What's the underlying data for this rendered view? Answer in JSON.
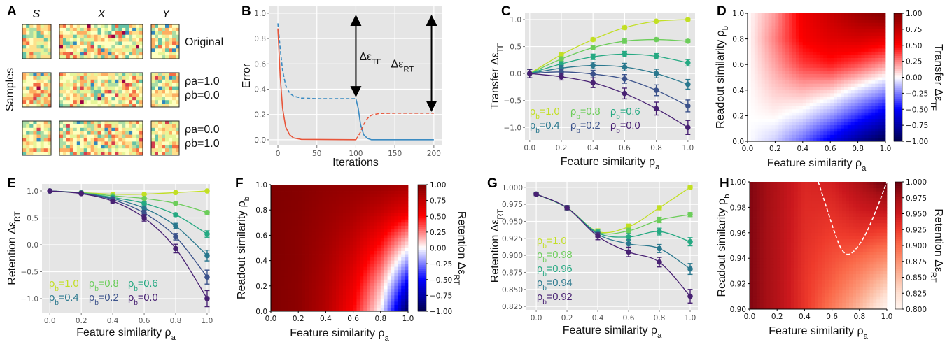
{
  "panel_labels": [
    "A",
    "B",
    "C",
    "D",
    "E",
    "F",
    "G",
    "H"
  ],
  "panel_a": {
    "column_labels": [
      "S",
      "X",
      "Y"
    ],
    "side_label": "Samples",
    "row_labels": [
      [
        "Original"
      ],
      [
        "ρa=1.0",
        "ρb=0.0"
      ],
      [
        "ρa=0.0",
        "ρb=1.0"
      ]
    ],
    "palette": [
      "#ffffbf",
      "#fee08b",
      "#e6f598",
      "#abdda4",
      "#fdae61",
      "#f46d43",
      "#66c2a5",
      "#3288bd",
      "#d53e4f",
      "#9e0142"
    ]
  },
  "chart_data": [
    {
      "id": "B",
      "type": "line",
      "xlabel": {
        "text": "Iterations"
      },
      "ylabel": {
        "text": "Error"
      },
      "xlim": [
        -10.8,
        210
      ],
      "ylim": [
        -0.045,
        1.055
      ],
      "grid": true,
      "background": "#e5e5e5",
      "xticks": [
        0,
        50,
        100,
        150,
        200
      ],
      "xtick_labels": [
        "0",
        "50",
        "100",
        "150",
        "200"
      ],
      "yticks": [
        0,
        0.2,
        0.4,
        0.6,
        0.8,
        1.0
      ],
      "ytick_labels": [
        "0.0",
        "0.2",
        "0.4",
        "0.6",
        "0.8",
        "1.0"
      ],
      "series": [
        {
          "color": "#3b8bc2",
          "dash": true,
          "x": [
            0,
            3,
            6,
            10,
            15,
            20,
            30,
            50,
            100
          ],
          "y": [
            0.92,
            0.72,
            0.55,
            0.43,
            0.37,
            0.345,
            0.33,
            0.325,
            0.325
          ]
        },
        {
          "color": "#3b8bc2",
          "dash": false,
          "x": [
            100,
            103,
            106,
            110,
            115,
            120,
            200
          ],
          "y": [
            0.325,
            0.25,
            0.12,
            0.04,
            0.01,
            0,
            0
          ]
        },
        {
          "color": "#e8553a",
          "dash": false,
          "x": [
            0,
            3,
            6,
            10,
            15,
            20,
            30,
            100
          ],
          "y": [
            0.88,
            0.5,
            0.25,
            0.1,
            0.04,
            0.015,
            0.003,
            0
          ]
        },
        {
          "color": "#e8553a",
          "dash": true,
          "x": [
            100,
            105,
            110,
            115,
            120,
            130,
            150,
            200
          ],
          "y": [
            0,
            0.05,
            0.12,
            0.17,
            0.195,
            0.208,
            0.21,
            0.21
          ]
        }
      ],
      "annotations": [
        {
          "text": "Δε",
          "sub": "TF",
          "x": 100,
          "y_from": 1.0,
          "y_to": 0.325
        },
        {
          "text": "Δε",
          "sub": "RT",
          "x": 197,
          "y_from": 1.0,
          "y_to": 0.21
        }
      ]
    },
    {
      "id": "C",
      "type": "line",
      "xlabel": {
        "text": "Feature similarity ρ",
        "sub": "a"
      },
      "ylabel": {
        "text": "Transfer Δε",
        "sub": "TF"
      },
      "xlim": [
        -0.03,
        1.045
      ],
      "ylim": [
        -1.23,
        1.13
      ],
      "grid": true,
      "background": "#e5e5e5",
      "xticks": [
        0,
        0.2,
        0.4,
        0.6,
        0.8,
        1.0
      ],
      "xtick_labels": [
        "0.0",
        "0.2",
        "0.4",
        "0.6",
        "0.8",
        "1.0"
      ],
      "yticks": [
        -1,
        -0.5,
        0,
        0.5,
        1
      ],
      "ytick_labels": [
        "−1.0",
        "−0.5",
        "0.0",
        "0.5",
        "1.0"
      ],
      "legend": "bottom-left",
      "x": [
        0,
        0.2,
        0.4,
        0.6,
        0.8,
        1.0
      ],
      "series": [
        {
          "name": "ρb=1.0",
          "color": "#c2df23",
          "values": [
            0,
            0.35,
            0.63,
            0.85,
            0.97,
            1.0
          ],
          "err": [
            0.08,
            0.04,
            0.03,
            0.03,
            0.02,
            0.02
          ]
        },
        {
          "name": "ρb=0.8",
          "color": "#6ccd5a",
          "values": [
            0,
            0.27,
            0.48,
            0.6,
            0.63,
            0.6
          ],
          "err": [
            0.08,
            0.04,
            0.04,
            0.04,
            0.03,
            0.03
          ]
        },
        {
          "name": "ρb=0.6",
          "color": "#25a982",
          "values": [
            0,
            0.18,
            0.31,
            0.36,
            0.32,
            0.2
          ],
          "err": [
            0.08,
            0.04,
            0.05,
            0.05,
            0.05,
            0.06
          ]
        },
        {
          "name": "ρb=0.4",
          "color": "#2a788e",
          "values": [
            0,
            0.1,
            0.15,
            0.12,
            0.0,
            -0.2
          ],
          "err": [
            0.08,
            0.05,
            0.06,
            0.07,
            0.08,
            0.09
          ]
        },
        {
          "name": "ρb=0.2",
          "color": "#3b528b",
          "values": [
            0,
            0.03,
            -0.01,
            -0.1,
            -0.31,
            -0.6
          ],
          "err": [
            0.08,
            0.05,
            0.07,
            0.08,
            0.1,
            0.11
          ]
        },
        {
          "name": "ρb=0.0",
          "color": "#482173",
          "values": [
            0,
            -0.06,
            -0.17,
            -0.37,
            -0.65,
            -1.0
          ],
          "err": [
            0.08,
            0.06,
            0.09,
            0.1,
            0.12,
            0.13
          ]
        }
      ]
    },
    {
      "id": "D",
      "type": "heatmap",
      "xlabel": {
        "text": "Feature similarity ρ",
        "sub": "a"
      },
      "ylabel": {
        "text": "Readout similarity ρ",
        "sub": "b"
      },
      "colorbar_label": {
        "text": "Transfer Δε",
        "sub": "TF"
      },
      "colormap": "seismic",
      "clim": [
        -1,
        1
      ],
      "x": [
        0,
        0.2,
        0.4,
        0.6,
        0.8,
        1.0
      ],
      "y": [
        0,
        0.2,
        0.4,
        0.6,
        0.8,
        1.0
      ],
      "xtick_labels": [
        "0.0",
        "0.2",
        "0.4",
        "0.6",
        "0.8",
        "1.0"
      ],
      "ytick_labels": [
        "0.0",
        "0.2",
        "0.4",
        "0.6",
        "0.8",
        "1.0"
      ],
      "colorbar_ticks": [
        -1,
        -0.75,
        -0.5,
        -0.25,
        0,
        0.25,
        0.5,
        0.75,
        1
      ],
      "colorbar_tick_labels": [
        "−1.00",
        "−0.75",
        "−0.50",
        "−0.25",
        "0.00",
        "0.25",
        "0.50",
        "0.75",
        "1.00"
      ],
      "z": [
        [
          0,
          -0.1,
          -0.3,
          -0.55,
          -0.8,
          -1.0
        ],
        [
          0,
          0.02,
          -0.05,
          -0.2,
          -0.4,
          -0.6
        ],
        [
          0,
          0.1,
          0.15,
          0.1,
          -0.05,
          -0.2
        ],
        [
          0,
          0.18,
          0.38,
          0.45,
          0.35,
          0.2
        ],
        [
          0,
          0.25,
          0.52,
          0.62,
          0.66,
          0.6
        ],
        [
          0,
          0.2,
          0.56,
          0.72,
          0.88,
          1.0
        ]
      ]
    },
    {
      "id": "E",
      "type": "line",
      "xlabel": {
        "text": "Feature similarity ρ",
        "sub": "a"
      },
      "ylabel": {
        "text": "Retention Δε",
        "sub": "RT"
      },
      "xlim": [
        -0.05,
        1.018
      ],
      "ylim": [
        -1.26,
        1.13
      ],
      "grid": true,
      "background": "#e5e5e5",
      "xticks": [
        0,
        0.2,
        0.4,
        0.6,
        0.8,
        1.0
      ],
      "xtick_labels": [
        "0.0",
        "0.2",
        "0.4",
        "0.6",
        "0.8",
        "1.0"
      ],
      "yticks": [
        -1,
        -0.5,
        0,
        0.5,
        1
      ],
      "ytick_labels": [
        "−1.0",
        "−0.5",
        "0.0",
        "0.5",
        "1.0"
      ],
      "legend": "bottom-left",
      "x": [
        0,
        0.2,
        0.4,
        0.6,
        0.8,
        1.0
      ],
      "series": [
        {
          "name": "ρb=1.0",
          "color": "#c2df23",
          "values": [
            1,
            0.97,
            0.94,
            0.94,
            0.97,
            1.0
          ],
          "err": [
            0.01,
            0.01,
            0.01,
            0.01,
            0.01,
            0.01
          ]
        },
        {
          "name": "ρb=0.8",
          "color": "#6ccd5a",
          "values": [
            1,
            0.97,
            0.91,
            0.86,
            0.77,
            0.6
          ],
          "err": [
            0.01,
            0.01,
            0.01,
            0.02,
            0.02,
            0.03
          ]
        },
        {
          "name": "ρb=0.6",
          "color": "#25a982",
          "values": [
            1,
            0.96,
            0.88,
            0.77,
            0.56,
            0.2
          ],
          "err": [
            0.01,
            0.01,
            0.02,
            0.03,
            0.03,
            0.06
          ]
        },
        {
          "name": "ρb=0.4",
          "color": "#2a788e",
          "values": [
            1,
            0.96,
            0.86,
            0.68,
            0.35,
            -0.2
          ],
          "err": [
            0.01,
            0.01,
            0.02,
            0.04,
            0.05,
            0.1
          ]
        },
        {
          "name": "ρb=0.2",
          "color": "#3b528b",
          "values": [
            1,
            0.96,
            0.84,
            0.59,
            0.15,
            -0.6
          ],
          "err": [
            0.01,
            0.01,
            0.03,
            0.05,
            0.06,
            0.13
          ]
        },
        {
          "name": "ρb=0.0",
          "color": "#482173",
          "values": [
            1,
            0.95,
            0.81,
            0.5,
            -0.07,
            -1.0
          ],
          "err": [
            0.01,
            0.01,
            0.03,
            0.06,
            0.08,
            0.15
          ]
        }
      ]
    },
    {
      "id": "F",
      "type": "heatmap",
      "xlabel": {
        "text": "Feature similarity ρ",
        "sub": "a"
      },
      "ylabel": {
        "text": "Readout similarity ρ",
        "sub": "b"
      },
      "colorbar_label": {
        "text": "Retention Δε",
        "sub": "RT"
      },
      "colormap": "seismic",
      "clim": [
        -1,
        1
      ],
      "x": [
        0,
        0.2,
        0.4,
        0.6,
        0.8,
        1.0
      ],
      "y": [
        0,
        0.2,
        0.4,
        0.6,
        0.8,
        1.0
      ],
      "xtick_labels": [
        "0.0",
        "0.2",
        "0.4",
        "0.6",
        "0.8",
        "1.0"
      ],
      "ytick_labels": [
        "0.0",
        "0.2",
        "0.4",
        "0.6",
        "0.8",
        "1.0"
      ],
      "colorbar_ticks": [
        -1,
        -0.75,
        -0.5,
        -0.25,
        0,
        0.25,
        0.5,
        0.75,
        1
      ],
      "colorbar_tick_labels": [
        "−1.00",
        "−0.75",
        "−0.50",
        "−0.25",
        "0.00",
        "0.25",
        "0.50",
        "0.75",
        "1.00"
      ],
      "z": [
        [
          1,
          0.95,
          0.8,
          0.5,
          0.0,
          -1.0
        ],
        [
          1,
          0.95,
          0.82,
          0.58,
          0.15,
          -0.6
        ],
        [
          1,
          0.96,
          0.85,
          0.67,
          0.35,
          -0.2
        ],
        [
          1,
          0.96,
          0.88,
          0.76,
          0.55,
          0.2
        ],
        [
          1,
          0.97,
          0.91,
          0.85,
          0.75,
          0.6
        ],
        [
          1,
          0.98,
          0.94,
          0.92,
          0.9,
          0.85
        ]
      ]
    },
    {
      "id": "G",
      "type": "line",
      "xlabel": {
        "text": "Feature similarity ρ",
        "sub": "a"
      },
      "ylabel": {
        "text": "Retention Δε",
        "sub": "RT"
      },
      "xlim": [
        -0.064,
        1.05
      ],
      "ylim": [
        0.82,
        1.008
      ],
      "grid": true,
      "background": "#e5e5e5",
      "xticks": [
        0,
        0.2,
        0.4,
        0.6,
        0.8,
        1.0
      ],
      "xtick_labels": [
        "0.0",
        "0.2",
        "0.4",
        "0.6",
        "0.8",
        "1.0"
      ],
      "yticks": [
        0.825,
        0.85,
        0.875,
        0.9,
        0.925,
        0.95,
        0.975,
        1.0
      ],
      "ytick_labels": [
        "0.825",
        "0.850",
        "0.875",
        "0.900",
        "0.925",
        "0.950",
        "0.975",
        "1.000"
      ],
      "legend": "left",
      "x": [
        0,
        0.2,
        0.4,
        0.6,
        0.8,
        1.0
      ],
      "series": [
        {
          "name": "ρb=1.0",
          "color": "#c2df23",
          "values": [
            0.99,
            0.97,
            0.935,
            0.942,
            0.97,
            1.0
          ],
          "err": [
            0.002,
            0.003,
            0.004,
            0.004,
            0.003,
            0.002
          ]
        },
        {
          "name": "ρb=0.98",
          "color": "#6ccd5a",
          "values": [
            0.99,
            0.97,
            0.934,
            0.936,
            0.952,
            0.96
          ],
          "err": [
            0.002,
            0.003,
            0.004,
            0.004,
            0.004,
            0.003
          ]
        },
        {
          "name": "ρb=0.96",
          "color": "#25a982",
          "values": [
            0.99,
            0.97,
            0.933,
            0.927,
            0.935,
            0.92
          ],
          "err": [
            0.002,
            0.003,
            0.004,
            0.005,
            0.005,
            0.006
          ]
        },
        {
          "name": "ρb=0.94",
          "color": "#2a788e",
          "values": [
            0.99,
            0.97,
            0.931,
            0.917,
            0.91,
            0.88
          ],
          "err": [
            0.002,
            0.003,
            0.004,
            0.006,
            0.006,
            0.008
          ]
        },
        {
          "name": "ρb=0.92",
          "color": "#482173",
          "values": [
            0.99,
            0.97,
            0.928,
            0.905,
            0.89,
            0.84
          ],
          "err": [
            0.002,
            0.003,
            0.005,
            0.007,
            0.007,
            0.01
          ]
        }
      ]
    },
    {
      "id": "H",
      "type": "heatmap",
      "xlabel": {
        "text": "Feature similarity ρ",
        "sub": "a"
      },
      "ylabel": {
        "text": "Readout similarity ρ",
        "sub": "b"
      },
      "colorbar_label": {
        "text": "Retention Δε",
        "sub": "RT"
      },
      "colormap": "Reds",
      "clim": [
        0.8,
        1.0
      ],
      "x": [
        0,
        0.2,
        0.4,
        0.6,
        0.8,
        1.0
      ],
      "y": [
        0.9,
        0.92,
        0.94,
        0.96,
        0.98,
        1.0
      ],
      "xtick_labels": [
        "0.0",
        "0.2",
        "0.4",
        "0.6",
        "0.8",
        "1.0"
      ],
      "ytick_labels": [
        "0.90",
        "0.92",
        "0.94",
        "0.96",
        "0.98",
        "1.00"
      ],
      "colorbar_ticks": [
        0.8,
        0.825,
        0.85,
        0.875,
        0.9,
        0.925,
        0.95,
        0.975,
        1.0
      ],
      "colorbar_tick_labels": [
        "0.800",
        "0.825",
        "0.850",
        "0.875",
        "0.900",
        "0.925",
        "0.950",
        "0.975",
        "1.000"
      ],
      "z": [
        [
          0.99,
          0.965,
          0.93,
          0.89,
          0.85,
          0.8
        ],
        [
          0.99,
          0.965,
          0.93,
          0.905,
          0.875,
          0.84
        ],
        [
          0.99,
          0.965,
          0.932,
          0.915,
          0.9,
          0.88
        ],
        [
          0.99,
          0.965,
          0.935,
          0.925,
          0.93,
          0.92
        ],
        [
          0.99,
          0.966,
          0.937,
          0.935,
          0.95,
          0.96
        ],
        [
          0.99,
          0.967,
          0.94,
          0.945,
          0.97,
          1.0
        ]
      ],
      "contour": {
        "style": "dashed",
        "color": "#ffffff",
        "points": [
          [
            0.5,
            1.0
          ],
          [
            0.56,
            0.98
          ],
          [
            0.62,
            0.96
          ],
          [
            0.67,
            0.947
          ],
          [
            0.72,
            0.943
          ],
          [
            0.78,
            0.948
          ],
          [
            0.85,
            0.96
          ],
          [
            0.93,
            0.98
          ],
          [
            1.0,
            1.0
          ]
        ]
      }
    }
  ]
}
